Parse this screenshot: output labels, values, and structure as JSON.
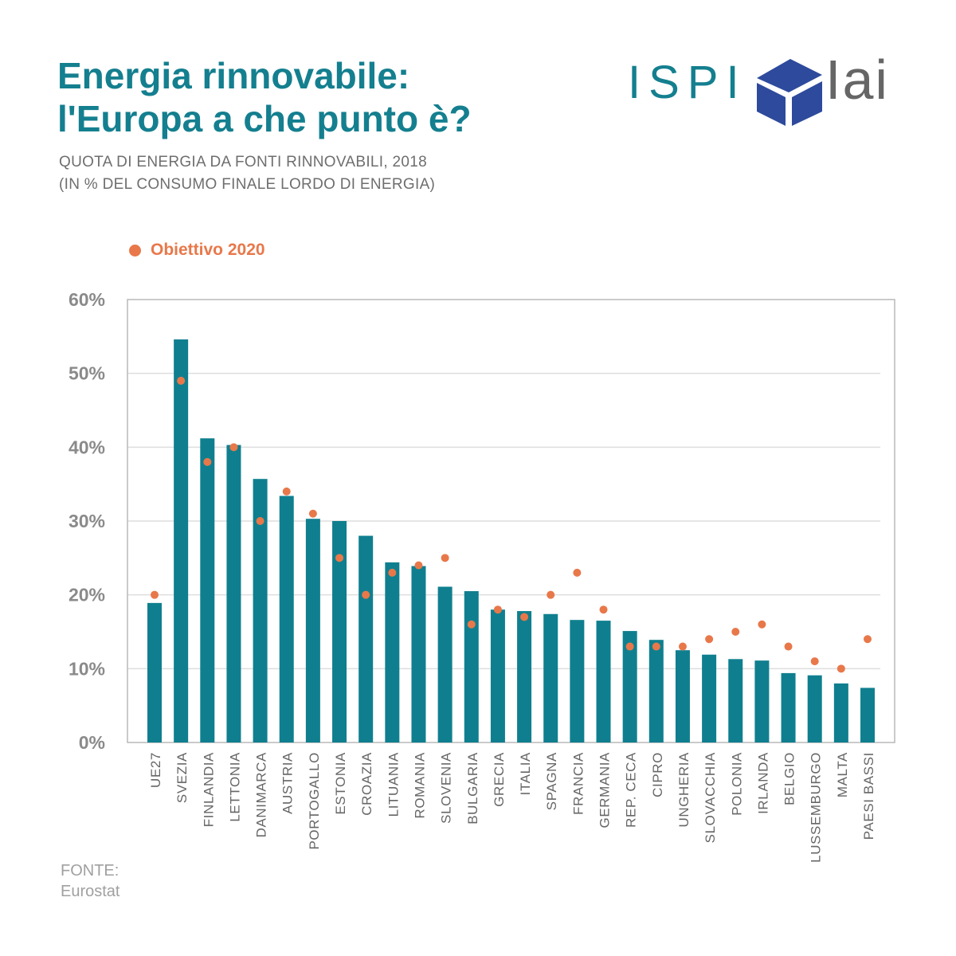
{
  "header": {
    "title_line1": "Energia rinnovabile:",
    "title_line2": "l'Europa a che punto è?",
    "subtitle_line1": "QUOTA DI ENERGIA DA FONTI RINNOVABILI, 2018",
    "subtitle_line2": "(IN % DEL CONSUMO FINALE LORDO DI ENERGIA)"
  },
  "logos": {
    "ispi": "ISPI",
    "iai": "Iai"
  },
  "legend": {
    "label": "Obiettivo 2020",
    "color": "#e8784a"
  },
  "source": {
    "line1": "FONTE:",
    "line2": "Eurostat"
  },
  "chart_data": {
    "type": "bar",
    "categories": [
      "UE27",
      "SVEZIA",
      "FINLANDIA",
      "LETTONIA",
      "DANIMARCA",
      "AUSTRIA",
      "PORTOGALLO",
      "ESTONIA",
      "CROAZIA",
      "LITUANIA",
      "ROMANIA",
      "SLOVENIA",
      "BULGARIA",
      "GRECIA",
      "ITALIA",
      "SPAGNA",
      "FRANCIA",
      "GERMANIA",
      "REP. CECA",
      "CIPRO",
      "UNGHERIA",
      "SLOVACCHIA",
      "POLONIA",
      "IRLANDA",
      "BELGIO",
      "LUSSEMBURGO",
      "MALTA",
      "PAESI  BASSI"
    ],
    "series": [
      {
        "name": "",
        "type": "bar",
        "color": "#0f7f8f",
        "values": [
          18.9,
          54.6,
          41.2,
          40.3,
          35.7,
          33.4,
          30.3,
          30.0,
          28.0,
          24.4,
          23.9,
          21.1,
          20.5,
          18.0,
          17.8,
          17.4,
          16.6,
          16.5,
          15.1,
          13.9,
          12.5,
          11.9,
          11.3,
          11.1,
          9.4,
          9.1,
          8.0,
          7.4
        ]
      },
      {
        "name": "Obiettivo 2020",
        "type": "scatter",
        "color": "#e8784a",
        "values": [
          20,
          49,
          38,
          40,
          30,
          34,
          31,
          25,
          20,
          23,
          24,
          25,
          16,
          18,
          17,
          20,
          23,
          18,
          13,
          13,
          13,
          14,
          15,
          16,
          13,
          11,
          10,
          14
        ]
      }
    ],
    "yticks": [
      "0%",
      "10%",
      "20%",
      "30%",
      "40%",
      "50%",
      "60%"
    ],
    "ylim": [
      0,
      60
    ],
    "grid": true
  }
}
